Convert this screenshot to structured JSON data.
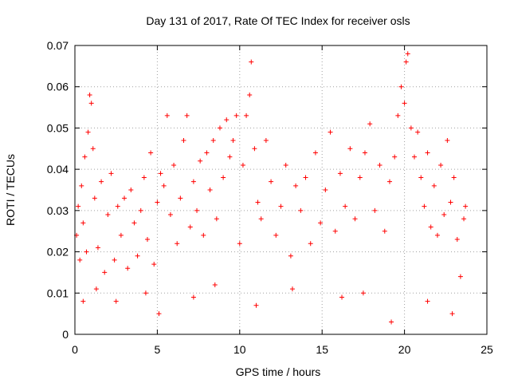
{
  "chart_data": {
    "type": "scatter",
    "title": "Day 131 of 2017, Rate Of TEC Index for receiver osls",
    "xlabel": "GPS time / hours",
    "ylabel": "ROTI / TECUs",
    "xlim": [
      0,
      25
    ],
    "ylim": [
      0,
      0.07
    ],
    "x_ticks": [
      0,
      5,
      10,
      15,
      20,
      25
    ],
    "x_tick_labels": [
      "0",
      "5",
      "10",
      "15",
      "20",
      "25"
    ],
    "y_ticks": [
      0,
      0.01,
      0.02,
      0.03,
      0.04,
      0.05,
      0.06,
      0.07
    ],
    "y_tick_labels": [
      "0",
      "0.01",
      "0.02",
      "0.03",
      "0.04",
      "0.05",
      "0.06",
      "0.07"
    ],
    "grid": true,
    "marker": "+",
    "marker_color": "#ff0000",
    "series": [
      {
        "name": "ROTI",
        "points": [
          [
            0.1,
            0.024
          ],
          [
            0.2,
            0.031
          ],
          [
            0.3,
            0.018
          ],
          [
            0.4,
            0.036
          ],
          [
            0.5,
            0.027
          ],
          [
            0.6,
            0.043
          ],
          [
            0.7,
            0.02
          ],
          [
            0.8,
            0.049
          ],
          [
            0.9,
            0.058
          ],
          [
            1.0,
            0.056
          ],
          [
            1.1,
            0.045
          ],
          [
            1.2,
            0.033
          ],
          [
            1.4,
            0.021
          ],
          [
            1.6,
            0.037
          ],
          [
            1.8,
            0.015
          ],
          [
            2.0,
            0.029
          ],
          [
            2.2,
            0.039
          ],
          [
            2.4,
            0.018
          ],
          [
            2.6,
            0.031
          ],
          [
            2.8,
            0.024
          ],
          [
            3.0,
            0.033
          ],
          [
            3.2,
            0.016
          ],
          [
            3.4,
            0.035
          ],
          [
            3.6,
            0.027
          ],
          [
            3.8,
            0.019
          ],
          [
            4.0,
            0.03
          ],
          [
            4.2,
            0.038
          ],
          [
            4.4,
            0.023
          ],
          [
            4.6,
            0.044
          ],
          [
            4.8,
            0.017
          ],
          [
            5.0,
            0.032
          ],
          [
            5.2,
            0.039
          ],
          [
            5.4,
            0.036
          ],
          [
            5.6,
            0.053
          ],
          [
            5.8,
            0.029
          ],
          [
            6.0,
            0.041
          ],
          [
            6.2,
            0.022
          ],
          [
            6.4,
            0.033
          ],
          [
            6.6,
            0.047
          ],
          [
            6.8,
            0.053
          ],
          [
            7.0,
            0.026
          ],
          [
            7.2,
            0.037
          ],
          [
            7.4,
            0.03
          ],
          [
            7.6,
            0.042
          ],
          [
            7.8,
            0.024
          ],
          [
            8.0,
            0.044
          ],
          [
            8.2,
            0.035
          ],
          [
            8.4,
            0.047
          ],
          [
            8.6,
            0.028
          ],
          [
            8.8,
            0.05
          ],
          [
            9.0,
            0.038
          ],
          [
            9.2,
            0.052
          ],
          [
            9.4,
            0.043
          ],
          [
            9.6,
            0.047
          ],
          [
            9.8,
            0.053
          ],
          [
            10.0,
            0.022
          ],
          [
            10.2,
            0.041
          ],
          [
            10.4,
            0.053
          ],
          [
            10.6,
            0.058
          ],
          [
            10.7,
            0.066
          ],
          [
            10.9,
            0.045
          ],
          [
            11.1,
            0.032
          ],
          [
            11.3,
            0.028
          ],
          [
            11.6,
            0.047
          ],
          [
            11.9,
            0.037
          ],
          [
            12.2,
            0.024
          ],
          [
            12.5,
            0.031
          ],
          [
            12.8,
            0.041
          ],
          [
            13.1,
            0.019
          ],
          [
            13.4,
            0.036
          ],
          [
            13.7,
            0.03
          ],
          [
            14.0,
            0.038
          ],
          [
            14.3,
            0.022
          ],
          [
            14.6,
            0.044
          ],
          [
            14.9,
            0.027
          ],
          [
            15.2,
            0.035
          ],
          [
            15.5,
            0.049
          ],
          [
            15.8,
            0.025
          ],
          [
            16.1,
            0.039
          ],
          [
            16.4,
            0.031
          ],
          [
            16.7,
            0.045
          ],
          [
            17.0,
            0.028
          ],
          [
            17.3,
            0.038
          ],
          [
            17.6,
            0.044
          ],
          [
            17.9,
            0.051
          ],
          [
            18.2,
            0.03
          ],
          [
            18.5,
            0.041
          ],
          [
            18.8,
            0.025
          ],
          [
            19.1,
            0.037
          ],
          [
            19.4,
            0.043
          ],
          [
            19.6,
            0.053
          ],
          [
            19.8,
            0.06
          ],
          [
            20.0,
            0.056
          ],
          [
            20.1,
            0.066
          ],
          [
            20.2,
            0.068
          ],
          [
            20.4,
            0.05
          ],
          [
            20.6,
            0.043
          ],
          [
            20.8,
            0.049
          ],
          [
            21.0,
            0.038
          ],
          [
            21.2,
            0.031
          ],
          [
            21.4,
            0.044
          ],
          [
            21.6,
            0.026
          ],
          [
            21.8,
            0.036
          ],
          [
            22.0,
            0.024
          ],
          [
            22.2,
            0.041
          ],
          [
            22.4,
            0.029
          ],
          [
            22.6,
            0.047
          ],
          [
            22.8,
            0.032
          ],
          [
            23.0,
            0.038
          ],
          [
            23.2,
            0.023
          ],
          [
            23.4,
            0.014
          ],
          [
            23.6,
            0.028
          ],
          [
            23.7,
            0.031
          ],
          [
            1.3,
            0.011
          ],
          [
            2.5,
            0.008
          ],
          [
            4.3,
            0.01
          ],
          [
            5.1,
            0.005
          ],
          [
            7.2,
            0.009
          ],
          [
            11.0,
            0.007
          ],
          [
            19.2,
            0.003
          ],
          [
            16.2,
            0.009
          ],
          [
            17.5,
            0.01
          ],
          [
            21.4,
            0.008
          ],
          [
            22.9,
            0.005
          ],
          [
            13.2,
            0.011
          ],
          [
            8.5,
            0.012
          ],
          [
            0.5,
            0.008
          ]
        ]
      }
    ]
  }
}
